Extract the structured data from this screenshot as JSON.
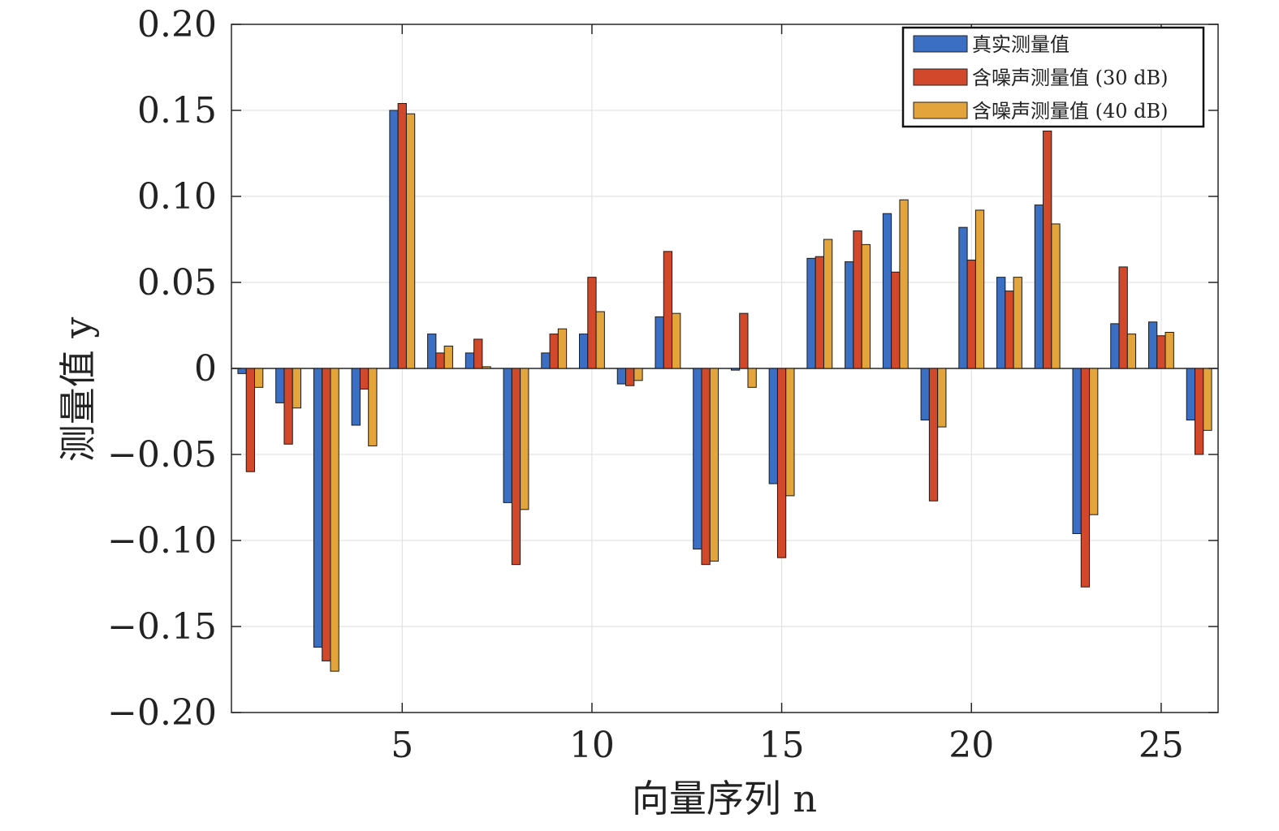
{
  "chart_data": {
    "type": "bar",
    "xlabel": "向量序列 n",
    "ylabel": "测量值 y",
    "xlim": [
      0.5,
      26.5
    ],
    "ylim": [
      -0.2,
      0.2
    ],
    "x_ticks": [
      5,
      10,
      15,
      20,
      25
    ],
    "x_tick_labels": [
      "5",
      "10",
      "15",
      "20",
      "25"
    ],
    "y_ticks": [
      -0.2,
      -0.15,
      -0.1,
      -0.05,
      0,
      0.05,
      0.1,
      0.15,
      0.2
    ],
    "y_tick_labels": [
      "−0.20",
      "−0.15",
      "−0.10",
      "−0.05",
      "0",
      "0.05",
      "0.10",
      "0.15",
      "0.20"
    ],
    "grid": true,
    "legend_position": "top-right",
    "x": [
      1,
      2,
      3,
      4,
      5,
      6,
      7,
      8,
      9,
      10,
      11,
      12,
      13,
      14,
      15,
      16,
      17,
      18,
      19,
      20,
      21,
      22,
      23,
      24,
      25,
      26
    ],
    "series": [
      {
        "name": "真实测量值",
        "color": "#3b6fc4",
        "values": [
          -0.003,
          -0.02,
          -0.162,
          -0.033,
          0.15,
          0.02,
          0.009,
          -0.078,
          0.009,
          0.02,
          -0.009,
          0.03,
          -0.105,
          -0.001,
          -0.067,
          0.064,
          0.062,
          0.09,
          -0.03,
          0.082,
          0.053,
          0.095,
          -0.096,
          0.026,
          0.027,
          -0.03
        ]
      },
      {
        "name": "含噪声测量值 (30 dB)",
        "color": "#d1492a",
        "values": [
          -0.06,
          -0.044,
          -0.17,
          -0.012,
          0.154,
          0.009,
          0.017,
          -0.114,
          0.02,
          0.053,
          -0.01,
          0.068,
          -0.114,
          0.032,
          -0.11,
          0.065,
          0.08,
          0.056,
          -0.077,
          0.063,
          0.045,
          0.138,
          -0.127,
          0.059,
          0.019,
          -0.05
        ]
      },
      {
        "name": "含噪声测量值 (40 dB)",
        "color": "#e3a43c",
        "values": [
          -0.011,
          -0.023,
          -0.176,
          -0.045,
          0.148,
          0.013,
          0.001,
          -0.082,
          0.023,
          0.033,
          -0.007,
          0.032,
          -0.112,
          -0.011,
          -0.074,
          0.075,
          0.072,
          0.098,
          -0.034,
          0.092,
          0.053,
          0.084,
          -0.085,
          0.02,
          0.021,
          -0.036
        ]
      }
    ]
  }
}
